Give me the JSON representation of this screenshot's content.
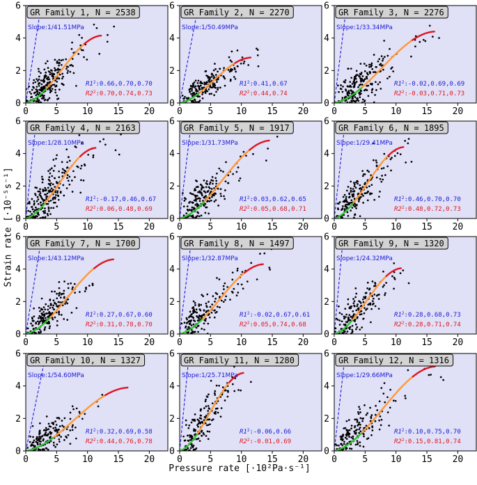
{
  "chart_data": {
    "type": "scatter",
    "xlabel": "Pressure rate [·10²Pa·s⁻¹]",
    "ylabel": "Strain rate [·10⁻⁵s⁻¹]",
    "xlim": [
      0,
      23
    ],
    "ylim": [
      0,
      6
    ],
    "xticks": [
      0,
      5,
      10,
      15,
      20
    ],
    "yticks": [
      0,
      2,
      4,
      6
    ],
    "colors": {
      "background": "#e0e0f7",
      "points": "#000000",
      "fit_line": "#1a1ad6",
      "curve_low": "#33c233",
      "curve_mid": "#ff9933",
      "curve_high": "#e0141e",
      "r1_text": "#1a1ad6",
      "r2_text": "#e0141e"
    },
    "panels": [
      {
        "title": "GR Family 1, N = 2538",
        "slope": "Slope:1/41.51MPa",
        "slope_val": 41.51,
        "r1": ":0.66,0.70,0.70",
        "r2": ":0.70,0.74,0.73",
        "curve_end": [
          12.2,
          4.15
        ],
        "spread": 0.55,
        "npts": 240,
        "xmax": 17
      },
      {
        "title": "GR Family 2, N = 2270",
        "slope": "Slope:1/50.49MPa",
        "slope_val": 50.49,
        "r1": ":0.41,0.67",
        "r2": ":0.44,0.74",
        "curve_end": [
          11.5,
          2.8
        ],
        "spread": 0.4,
        "npts": 220,
        "xmax": 13
      },
      {
        "title": "GR Family 3, N = 2276",
        "slope": "Slope:1/33.34MPa",
        "slope_val": 33.34,
        "r1": ":-0.02,0.69,0.69",
        "r2": ":-0.03,0.71,0.73",
        "curve_end": [
          16.2,
          4.4
        ],
        "spread": 0.55,
        "npts": 230,
        "xmax": 17
      },
      {
        "title": "GR Family 4, N = 2163",
        "slope": "Slope:1/28.10MPa",
        "slope_val": 28.1,
        "r1": ":-0.17,0.46,0.67",
        "r2": ":0.06,0.48,0.69",
        "curve_end": [
          11.3,
          4.35
        ],
        "spread": 0.8,
        "npts": 230,
        "xmax": 16
      },
      {
        "title": "GR Family 5, N = 1917",
        "slope": "Slope:1/31.73MPa",
        "slope_val": 31.73,
        "r1": ":0.03,0.62,0.65",
        "r2": ":0.05,0.68,0.71",
        "curve_end": [
          14.5,
          4.8
        ],
        "spread": 0.6,
        "npts": 200,
        "xmax": 16
      },
      {
        "title": "GR Family 6, N = 1895",
        "slope": "Slope:1/29.41MPa",
        "slope_val": 29.41,
        "r1": ":0.46,0.70,0.70",
        "r2": ":0.48,0.72,0.73",
        "curve_end": [
          11.2,
          4.4
        ],
        "spread": 0.55,
        "npts": 200,
        "xmax": 18
      },
      {
        "title": "GR Family 7, N = 1700",
        "slope": "Slope:1/43.12MPa",
        "slope_val": 43.12,
        "r1": ":0.27,0.67,0.60",
        "r2": ":0.31,0.78,0.70",
        "curve_end": [
          14.2,
          4.6
        ],
        "spread": 0.5,
        "npts": 190,
        "xmax": 13
      },
      {
        "title": "GR Family 8, N = 1497",
        "slope": "Slope:1/32.87MPa",
        "slope_val": 32.87,
        "r1": ":-0.02,0.67,0.61",
        "r2": ":0.05,0.74,0.68",
        "curve_end": [
          13.5,
          4.3
        ],
        "spread": 0.55,
        "npts": 180,
        "xmax": 15
      },
      {
        "title": "GR Family 9, N = 1320",
        "slope": "Slope:1/24.32MPa",
        "slope_val": 24.32,
        "r1": ":0.28,0.68,0.73",
        "r2": ":0.28,0.71,0.74",
        "curve_end": [
          10.8,
          4.05
        ],
        "spread": 0.6,
        "npts": 170,
        "xmax": 13
      },
      {
        "title": "GR Family 10, N = 1327",
        "slope": "Slope:1/54.60MPa",
        "slope_val": 54.6,
        "r1": ":0.32,0.69,0.58",
        "r2": ":0.44,0.76,0.78",
        "curve_end": [
          16.5,
          3.9
        ],
        "spread": 0.45,
        "npts": 170,
        "xmax": 14
      },
      {
        "title": "GR Family 11, N = 1280",
        "slope": "Slope:1/25.71MPa",
        "slope_val": 25.71,
        "r1": ":-0.06,0.66",
        "r2": ":-0.01,0.69",
        "curve_end": [
          10.3,
          4.8
        ],
        "spread": 0.6,
        "npts": 170,
        "xmax": 13
      },
      {
        "title": "GR Family 12, N = 1316",
        "slope": "Slope:1/29.66MPa",
        "slope_val": 29.66,
        "r1": ":0.10,0.75,0.70",
        "r2": ":0.15,0.81,0.74",
        "curve_end": [
          16.3,
          5.2
        ],
        "spread": 0.55,
        "npts": 170,
        "xmax": 19
      }
    ]
  }
}
